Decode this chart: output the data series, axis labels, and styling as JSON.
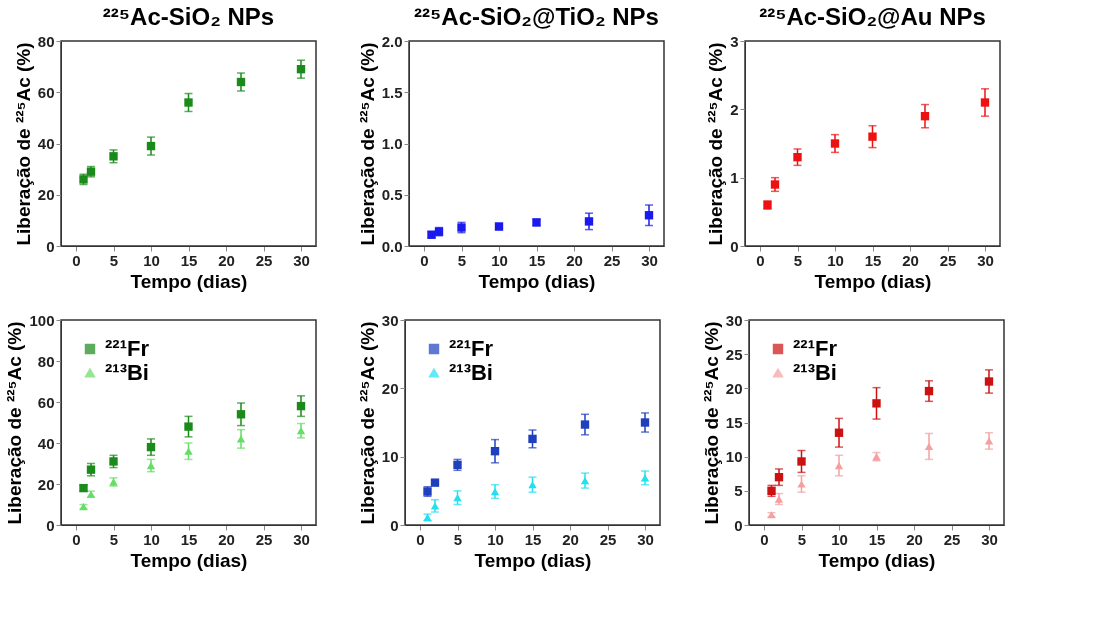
{
  "chart_data": [
    {
      "type": "scatter",
      "title": "²²⁵Ac-SiO₂ NPs",
      "xlabel": "Tempo (dias)",
      "ylabel": "Liberação de ²²⁵Ac (%)",
      "x": [
        1,
        2,
        5,
        10,
        15,
        22,
        30
      ],
      "xlim": [
        -2,
        32
      ],
      "xticks": [
        0,
        5,
        10,
        15,
        20,
        25,
        30
      ],
      "ylim": [
        0,
        80
      ],
      "yticks": [
        0,
        20,
        40,
        60,
        80
      ],
      "grid": false,
      "legend": false,
      "series": [
        {
          "color": "#1a8a1a",
          "marker": "square",
          "values": [
            26,
            29,
            35,
            39,
            56,
            64,
            69
          ],
          "errors": [
            2,
            2,
            2.5,
            3.5,
            3.5,
            3.5,
            3.5
          ]
        }
      ]
    },
    {
      "type": "scatter",
      "title": "²²⁵Ac-SiO₂@TiO₂ NPs",
      "xlabel": "Tempo (dias)",
      "ylabel": "Liberação de ²²⁵Ac (%)",
      "x": [
        1,
        2,
        5,
        10,
        15,
        22,
        30
      ],
      "xlim": [
        -2,
        32
      ],
      "xticks": [
        0,
        5,
        10,
        15,
        20,
        25,
        30
      ],
      "ylim": [
        0,
        2
      ],
      "yticks": [
        {
          "value": 0,
          "label": "0.0"
        },
        0.5,
        {
          "value": 1,
          "label": "1.0"
        },
        1.5,
        {
          "value": 2,
          "label": "2.0"
        }
      ],
      "grid": false,
      "legend": false,
      "series": [
        {
          "color": "#1a1aee",
          "marker": "square",
          "values": [
            0.11,
            0.14,
            0.18,
            0.19,
            0.23,
            0.24,
            0.3
          ],
          "errors": [
            0.03,
            0.04,
            0.05,
            0.03,
            0.03,
            0.08,
            0.1
          ]
        }
      ]
    },
    {
      "type": "scatter",
      "title": "²²⁵Ac-SiO₂@Au NPs",
      "xlabel": "Tempo (dias)",
      "ylabel": "Liberação de ²²⁵Ac (%)",
      "x": [
        1,
        2,
        5,
        10,
        15,
        22,
        30
      ],
      "xlim": [
        -2,
        32
      ],
      "xticks": [
        0,
        5,
        10,
        15,
        20,
        25,
        30
      ],
      "ylim": [
        0,
        3
      ],
      "yticks": [
        0,
        1,
        2,
        3
      ],
      "grid": false,
      "legend": false,
      "series": [
        {
          "color": "#ee1111",
          "marker": "square",
          "values": [
            0.6,
            0.9,
            1.3,
            1.5,
            1.6,
            1.9,
            2.1
          ],
          "errors": [
            0.06,
            0.1,
            0.12,
            0.13,
            0.16,
            0.17,
            0.2
          ]
        }
      ]
    },
    {
      "type": "scatter",
      "xlabel": "Tempo (dias)",
      "ylabel": "Liberação de ²²⁵Ac (%)",
      "x": [
        1,
        2,
        5,
        10,
        15,
        22,
        30
      ],
      "xlim": [
        -2,
        32
      ],
      "xticks": [
        0,
        5,
        10,
        15,
        20,
        25,
        30
      ],
      "ylim": [
        0,
        100
      ],
      "yticks": [
        0,
        20,
        40,
        60,
        80,
        100
      ],
      "grid": false,
      "legend": "top left",
      "series": [
        {
          "name": "²²¹Fr",
          "color": "#1a8a1a",
          "marker": "square",
          "values": [
            18,
            27,
            31,
            38,
            48,
            54,
            58
          ],
          "errors": [
            1.5,
            3,
            3,
            4,
            5,
            5.5,
            5
          ]
        },
        {
          "name": "²¹³Bi",
          "color": "#66dd66",
          "marker": "triangle",
          "values": [
            9,
            15,
            21,
            29,
            36,
            42,
            46
          ],
          "errors": [
            1,
            1.5,
            2,
            3,
            4,
            4.5,
            3.5
          ]
        }
      ]
    },
    {
      "type": "scatter",
      "xlabel": "Tempo (dias)",
      "ylabel": "Liberação de ²²⁵Ac (%)",
      "x": [
        1,
        2,
        5,
        10,
        15,
        22,
        30
      ],
      "xlim": [
        -2,
        32
      ],
      "xticks": [
        0,
        5,
        10,
        15,
        20,
        25,
        30
      ],
      "ylim": [
        0,
        30
      ],
      "yticks": [
        0,
        10,
        20,
        30
      ],
      "grid": false,
      "legend": "top left",
      "series": [
        {
          "name": "²²¹Fr",
          "color": "#1f3fbf",
          "marker": "square",
          "values": [
            4.9,
            6.2,
            8.8,
            10.8,
            12.6,
            14.7,
            15.0
          ],
          "errors": [
            0.7,
            0.4,
            0.8,
            1.7,
            1.3,
            1.5,
            1.4
          ]
        },
        {
          "name": "²¹³Bi",
          "color": "#22e0f0",
          "marker": "triangle",
          "values": [
            1.1,
            2.8,
            4.0,
            4.9,
            5.9,
            6.5,
            6.9
          ],
          "errors": [
            0.5,
            0.9,
            1.0,
            1.0,
            1.1,
            1.1,
            1.0
          ]
        }
      ]
    },
    {
      "type": "scatter",
      "xlabel": "Tempo (dias)",
      "ylabel": "Liberação de ²²⁵Ac (%)",
      "x": [
        1,
        2,
        5,
        10,
        15,
        22,
        30
      ],
      "xlim": [
        -2,
        32
      ],
      "xticks": [
        0,
        5,
        10,
        15,
        20,
        25,
        30
      ],
      "ylim": [
        0,
        30
      ],
      "yticks": [
        0,
        5,
        10,
        15,
        20,
        25,
        30
      ],
      "grid": false,
      "legend": "top left",
      "series": [
        {
          "name": "²²¹Fr",
          "color": "#cc1111",
          "marker": "square",
          "values": [
            5.0,
            7.0,
            9.3,
            13.5,
            17.8,
            19.6,
            21.0
          ],
          "errors": [
            0.8,
            1.2,
            1.6,
            2.1,
            2.3,
            1.5,
            1.7
          ]
        },
        {
          "name": "²¹³Bi",
          "color": "#f4a0a0",
          "marker": "triangle",
          "values": [
            1.5,
            3.8,
            6.0,
            8.7,
            10.0,
            11.5,
            12.3
          ],
          "errors": [
            0.3,
            0.8,
            1.2,
            1.5,
            0.6,
            1.9,
            1.2
          ]
        }
      ]
    }
  ]
}
